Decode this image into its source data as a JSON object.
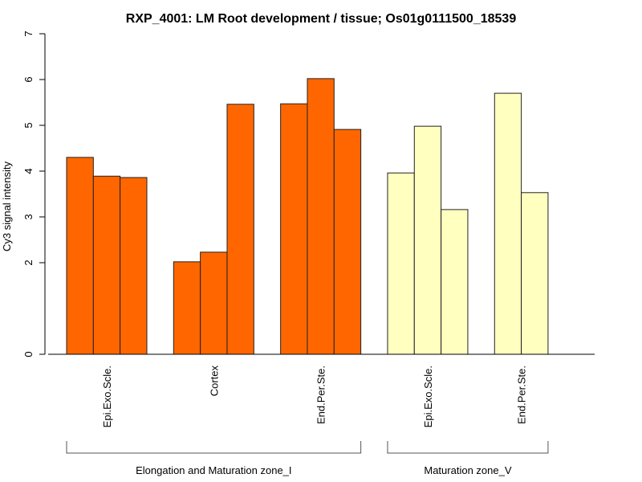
{
  "chart_data": {
    "type": "bar",
    "title": "RXP_4001: LM Root development / tissue; Os01g0111500_18539",
    "xlabel": "",
    "ylabel": "Cy3 signal intensity",
    "ylim": [
      0,
      7
    ],
    "yticks": [
      0,
      2,
      3,
      4,
      5,
      6,
      7
    ],
    "grid": false,
    "legend": "none",
    "groups": [
      {
        "name": "Elongation and Maturation zone_I",
        "color": "#ff6600",
        "categories": [
          {
            "label": "Epi.Exo.Scle.",
            "values": [
              4.3,
              3.89,
              3.86
            ]
          },
          {
            "label": "Cortex",
            "values": [
              2.02,
              2.23,
              5.46
            ]
          },
          {
            "label": "End.Per.Ste.",
            "values": [
              5.47,
              6.02,
              4.91
            ]
          }
        ]
      },
      {
        "name": "Maturation zone_V",
        "color": "#ffffc0",
        "categories": [
          {
            "label": "Epi.Exo.Scle.",
            "values": [
              3.96,
              4.98,
              3.16
            ]
          },
          {
            "label": "End.Per.Ste.",
            "values": [
              5.7,
              3.53
            ]
          }
        ]
      }
    ]
  }
}
